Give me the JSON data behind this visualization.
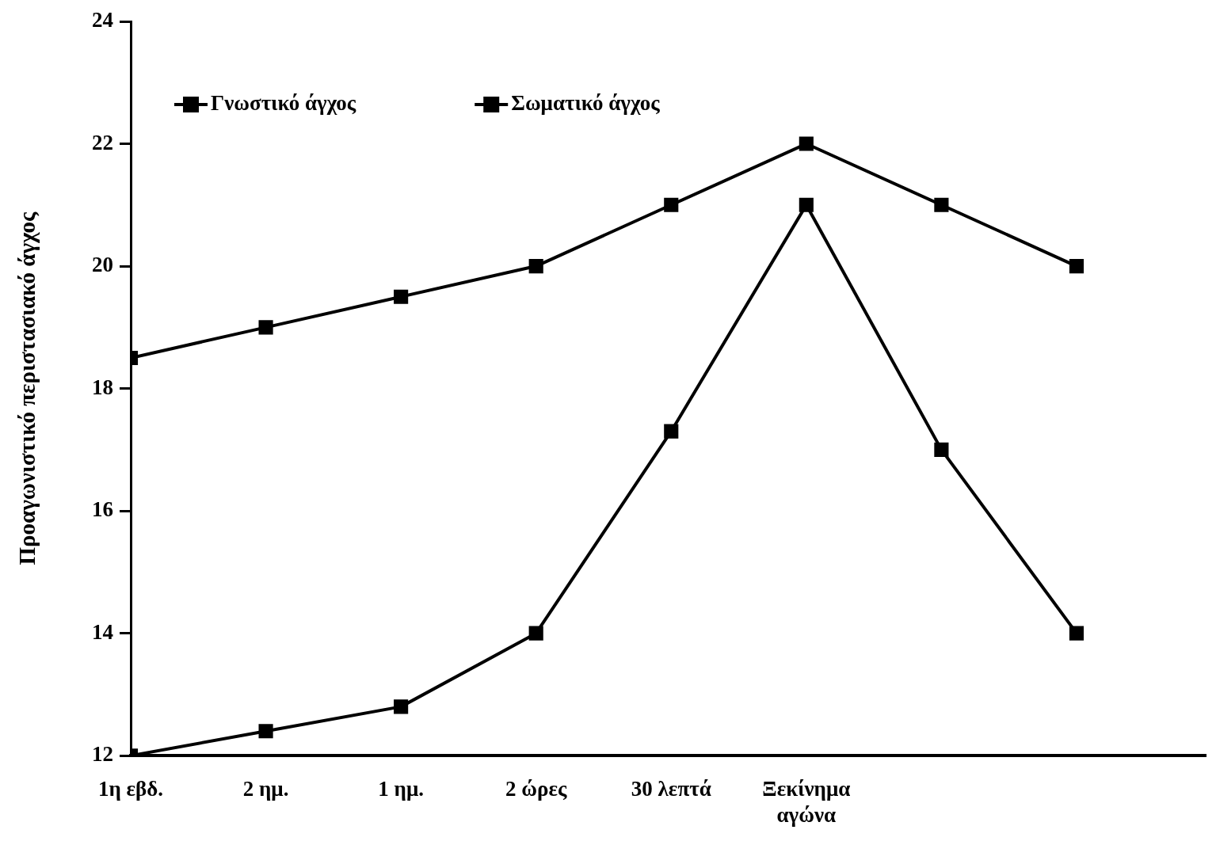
{
  "chart_data": {
    "type": "line",
    "ylabel": "Προαγωνιστικό περιστασιακό άγχος",
    "categories": [
      "1η εβδ.",
      "2 ημ.",
      "1 ημ.",
      "2 ώρες",
      "30 λεπτά",
      "Ξεκίνημα\nαγώνα",
      null,
      null
    ],
    "series": [
      {
        "name": "Γνωστικό άγχος",
        "color": "#000000",
        "values": [
          18.5,
          19,
          19.5,
          20,
          21,
          22,
          21,
          20
        ]
      },
      {
        "name": "Σωματικό άγχος",
        "color": "#000000",
        "values": [
          12,
          12.4,
          12.8,
          14,
          17.3,
          21,
          17,
          14
        ]
      }
    ],
    "ylim": [
      12,
      24
    ],
    "yticks": [
      12,
      14,
      16,
      18,
      20,
      22,
      24
    ],
    "grid": false,
    "legend": "top left",
    "marker": "square",
    "line_style": "solid"
  }
}
